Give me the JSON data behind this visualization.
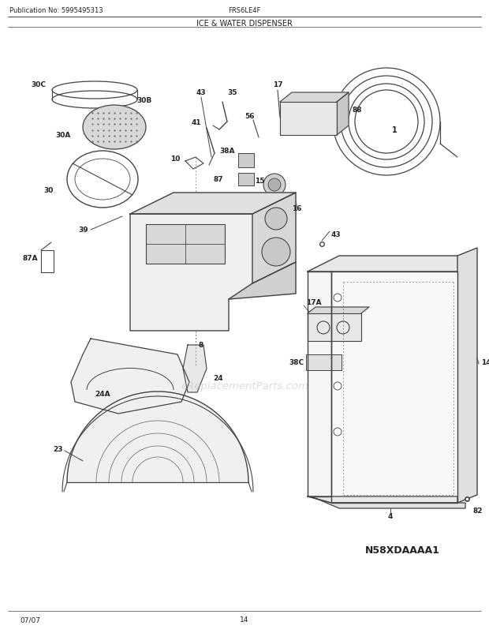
{
  "title": "ICE & WATER DISPENSER",
  "pub_no": "Publication No: 5995495313",
  "model": "FRS6LE4F",
  "diagram_code": "N58XDAAAA1",
  "date": "07/07",
  "page": "14",
  "watermark": "eReplacementParts.com",
  "bg_color": "#ffffff",
  "lc": "#444444",
  "lc_light": "#888888"
}
